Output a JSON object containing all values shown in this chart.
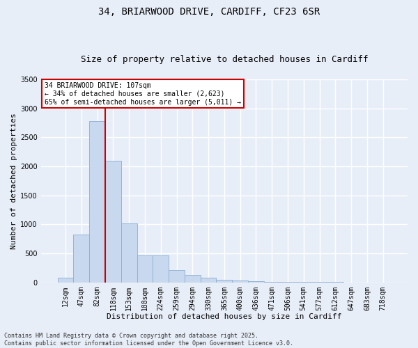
{
  "title_line1": "34, BRIARWOOD DRIVE, CARDIFF, CF23 6SR",
  "title_line2": "Size of property relative to detached houses in Cardiff",
  "xlabel": "Distribution of detached houses by size in Cardiff",
  "ylabel": "Number of detached properties",
  "categories": [
    "12sqm",
    "47sqm",
    "82sqm",
    "118sqm",
    "153sqm",
    "188sqm",
    "224sqm",
    "259sqm",
    "294sqm",
    "330sqm",
    "365sqm",
    "400sqm",
    "436sqm",
    "471sqm",
    "506sqm",
    "541sqm",
    "577sqm",
    "612sqm",
    "647sqm",
    "683sqm",
    "718sqm"
  ],
  "values": [
    75,
    820,
    2780,
    2100,
    1020,
    460,
    460,
    215,
    130,
    80,
    50,
    35,
    20,
    12,
    8,
    5,
    4,
    3,
    2,
    1,
    1
  ],
  "bar_color": "#c8d8ee",
  "bar_edge_color": "#8aafd4",
  "vline_color": "#cc0000",
  "vline_x_index": 2,
  "ylim": [
    0,
    3500
  ],
  "yticks": [
    0,
    500,
    1000,
    1500,
    2000,
    2500,
    3000,
    3500
  ],
  "annotation_text": "34 BRIARWOOD DRIVE: 107sqm\n← 34% of detached houses are smaller (2,623)\n65% of semi-detached houses are larger (5,011) →",
  "annotation_box_facecolor": "#ffffff",
  "annotation_box_edgecolor": "#cc0000",
  "footer_line1": "Contains HM Land Registry data © Crown copyright and database right 2025.",
  "footer_line2": "Contains public sector information licensed under the Open Government Licence v3.0.",
  "bg_color": "#e8eef8",
  "plot_bg_color": "#e8eef8",
  "grid_color": "#ffffff",
  "title1_fontsize": 10,
  "title2_fontsize": 9,
  "axis_label_fontsize": 8,
  "tick_fontsize": 7,
  "annotation_fontsize": 7,
  "footer_fontsize": 6
}
